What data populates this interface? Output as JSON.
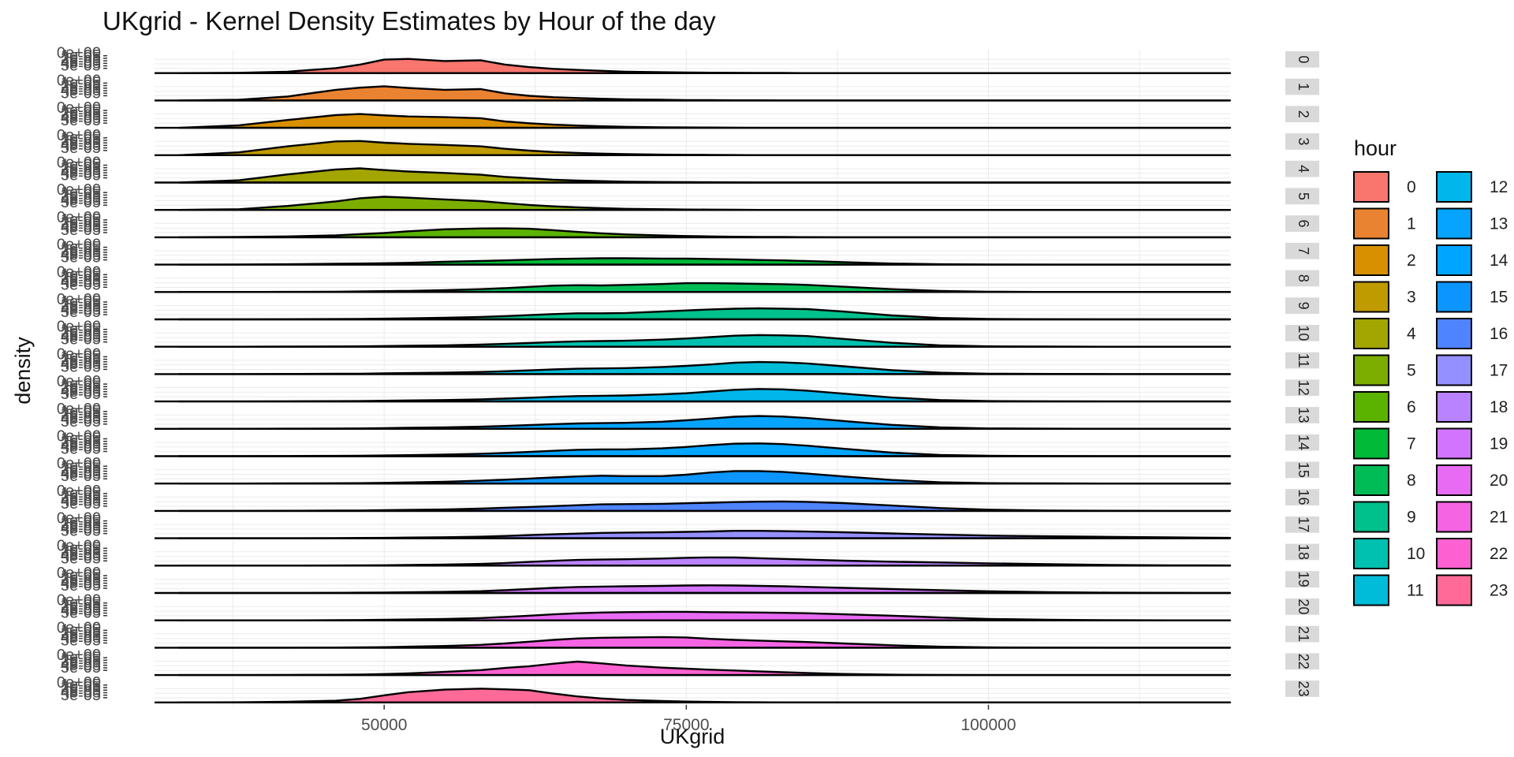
{
  "chart_data": {
    "type": "area",
    "title": "UKgrid - Kernel Density Estimates by Hour of the day",
    "xlabel": "UKgrid",
    "ylabel": "density",
    "xlim": [
      31000,
      120000
    ],
    "x_ticks": [
      50000,
      75000,
      100000
    ],
    "x_tick_labels": [
      "50000",
      "75000",
      "100000"
    ],
    "y_tick_labels": [
      "5e-05",
      "4e-05",
      "3e-05",
      "2e-05",
      "1e-05",
      "0e+00"
    ],
    "grid": true,
    "facet_strip_position": "right",
    "legend": {
      "title": "hour",
      "position": "right",
      "labels": [
        "0",
        "1",
        "2",
        "3",
        "4",
        "5",
        "6",
        "7",
        "8",
        "9",
        "10",
        "11",
        "12",
        "13",
        "14",
        "15",
        "16",
        "17",
        "18",
        "19",
        "20",
        "21",
        "22",
        "23"
      ]
    },
    "x": [
      33000,
      38000,
      42000,
      46000,
      48000,
      50000,
      52000,
      55000,
      58000,
      60000,
      62000,
      64000,
      66000,
      68000,
      70000,
      73000,
      75000,
      77000,
      79000,
      81000,
      83000,
      85000,
      88000,
      92000,
      96000,
      100000,
      105000,
      110000,
      115000,
      120000
    ],
    "series": [
      {
        "name": "0",
        "color": "#F8766D",
        "values": [
          0,
          0.02,
          0.1,
          0.35,
          0.6,
          0.95,
          1.0,
          0.85,
          0.9,
          0.6,
          0.42,
          0.3,
          0.22,
          0.16,
          0.1,
          0.06,
          0.04,
          0.03,
          0.02,
          0.01,
          0.01,
          0,
          0,
          0,
          0,
          0,
          0,
          0,
          0,
          0
        ]
      },
      {
        "name": "1",
        "color": "#EA8331",
        "values": [
          0,
          0.05,
          0.28,
          0.75,
          0.9,
          1.0,
          0.88,
          0.75,
          0.8,
          0.5,
          0.33,
          0.23,
          0.17,
          0.12,
          0.08,
          0.05,
          0.03,
          0.02,
          0.01,
          0.01,
          0,
          0,
          0,
          0,
          0,
          0,
          0,
          0,
          0,
          0
        ]
      },
      {
        "name": "2",
        "color": "#D89000",
        "values": [
          0,
          0.18,
          0.55,
          0.9,
          0.97,
          0.88,
          0.8,
          0.75,
          0.68,
          0.45,
          0.32,
          0.22,
          0.16,
          0.11,
          0.07,
          0.04,
          0.03,
          0.02,
          0.01,
          0,
          0,
          0,
          0,
          0,
          0,
          0,
          0,
          0,
          0,
          0
        ]
      },
      {
        "name": "3",
        "color": "#C09B00",
        "values": [
          0,
          0.2,
          0.62,
          0.97,
          1.0,
          0.88,
          0.8,
          0.72,
          0.62,
          0.45,
          0.32,
          0.22,
          0.16,
          0.11,
          0.07,
          0.04,
          0.03,
          0.02,
          0.01,
          0,
          0,
          0,
          0,
          0,
          0,
          0,
          0,
          0,
          0,
          0
        ]
      },
      {
        "name": "4",
        "color": "#A3A500",
        "values": [
          0,
          0.16,
          0.57,
          0.92,
          1.0,
          0.88,
          0.78,
          0.68,
          0.55,
          0.4,
          0.3,
          0.2,
          0.14,
          0.1,
          0.06,
          0.04,
          0.03,
          0.02,
          0.01,
          0,
          0,
          0,
          0,
          0,
          0,
          0,
          0,
          0,
          0,
          0
        ]
      },
      {
        "name": "5",
        "color": "#7CAE00",
        "values": [
          0,
          0.05,
          0.28,
          0.6,
          0.82,
          0.93,
          0.86,
          0.74,
          0.62,
          0.48,
          0.35,
          0.25,
          0.18,
          0.12,
          0.08,
          0.05,
          0.03,
          0.02,
          0.01,
          0,
          0,
          0,
          0,
          0,
          0,
          0,
          0,
          0,
          0,
          0
        ]
      },
      {
        "name": "6",
        "color": "#5BB300",
        "values": [
          0,
          0.02,
          0.06,
          0.14,
          0.22,
          0.3,
          0.42,
          0.56,
          0.62,
          0.63,
          0.6,
          0.5,
          0.38,
          0.28,
          0.2,
          0.13,
          0.09,
          0.06,
          0.04,
          0.03,
          0.02,
          0.01,
          0,
          0,
          0,
          0,
          0,
          0,
          0,
          0
        ]
      },
      {
        "name": "7",
        "color": "#00BA38",
        "values": [
          0,
          0.01,
          0.03,
          0.06,
          0.08,
          0.1,
          0.13,
          0.2,
          0.26,
          0.3,
          0.35,
          0.4,
          0.43,
          0.45,
          0.45,
          0.43,
          0.42,
          0.4,
          0.37,
          0.33,
          0.3,
          0.25,
          0.17,
          0.08,
          0.03,
          0.01,
          0,
          0,
          0,
          0
        ]
      },
      {
        "name": "8",
        "color": "#00BC56",
        "values": [
          0,
          0,
          0.01,
          0.02,
          0.04,
          0.06,
          0.08,
          0.13,
          0.2,
          0.27,
          0.36,
          0.45,
          0.48,
          0.46,
          0.5,
          0.56,
          0.62,
          0.62,
          0.6,
          0.57,
          0.55,
          0.5,
          0.37,
          0.2,
          0.08,
          0.02,
          0,
          0,
          0,
          0
        ]
      },
      {
        "name": "9",
        "color": "#00C08B",
        "values": [
          0,
          0,
          0.01,
          0.02,
          0.03,
          0.05,
          0.07,
          0.11,
          0.17,
          0.23,
          0.3,
          0.37,
          0.43,
          0.43,
          0.45,
          0.55,
          0.63,
          0.7,
          0.75,
          0.78,
          0.75,
          0.72,
          0.55,
          0.28,
          0.1,
          0.03,
          0.01,
          0,
          0,
          0
        ]
      },
      {
        "name": "10",
        "color": "#00C0AF",
        "values": [
          0,
          0,
          0.01,
          0.02,
          0.03,
          0.05,
          0.07,
          0.1,
          0.15,
          0.2,
          0.26,
          0.33,
          0.38,
          0.4,
          0.42,
          0.5,
          0.58,
          0.68,
          0.78,
          0.82,
          0.8,
          0.75,
          0.55,
          0.28,
          0.1,
          0.03,
          0.01,
          0,
          0,
          0
        ]
      },
      {
        "name": "11",
        "color": "#00BCD8",
        "values": [
          0,
          0,
          0.01,
          0.02,
          0.03,
          0.05,
          0.07,
          0.1,
          0.15,
          0.2,
          0.26,
          0.33,
          0.38,
          0.4,
          0.42,
          0.5,
          0.58,
          0.68,
          0.8,
          0.85,
          0.82,
          0.75,
          0.55,
          0.28,
          0.1,
          0.03,
          0.01,
          0,
          0,
          0
        ]
      },
      {
        "name": "12",
        "color": "#00B6EB",
        "values": [
          0,
          0,
          0.01,
          0.02,
          0.03,
          0.05,
          0.07,
          0.1,
          0.15,
          0.2,
          0.26,
          0.33,
          0.38,
          0.4,
          0.42,
          0.5,
          0.58,
          0.7,
          0.82,
          0.88,
          0.85,
          0.76,
          0.55,
          0.28,
          0.1,
          0.03,
          0.01,
          0,
          0,
          0
        ]
      },
      {
        "name": "13",
        "color": "#06A4FF",
        "values": [
          0,
          0,
          0.01,
          0.02,
          0.03,
          0.05,
          0.07,
          0.1,
          0.15,
          0.2,
          0.26,
          0.33,
          0.38,
          0.4,
          0.42,
          0.5,
          0.6,
          0.72,
          0.85,
          0.9,
          0.86,
          0.76,
          0.55,
          0.28,
          0.1,
          0.03,
          0.01,
          0,
          0,
          0
        ]
      },
      {
        "name": "14",
        "color": "#00A5FF",
        "values": [
          0,
          0,
          0.01,
          0.02,
          0.03,
          0.05,
          0.07,
          0.11,
          0.17,
          0.23,
          0.3,
          0.38,
          0.45,
          0.48,
          0.48,
          0.55,
          0.65,
          0.78,
          0.88,
          0.9,
          0.85,
          0.74,
          0.52,
          0.25,
          0.09,
          0.03,
          0.01,
          0,
          0,
          0
        ]
      },
      {
        "name": "15",
        "color": "#0D95FF",
        "values": [
          0,
          0,
          0.01,
          0.02,
          0.03,
          0.05,
          0.08,
          0.12,
          0.2,
          0.27,
          0.35,
          0.43,
          0.5,
          0.55,
          0.52,
          0.52,
          0.62,
          0.78,
          0.88,
          0.88,
          0.82,
          0.7,
          0.5,
          0.25,
          0.09,
          0.03,
          0.01,
          0,
          0,
          0
        ]
      },
      {
        "name": "16",
        "color": "#4E84FF",
        "values": [
          0,
          0,
          0.01,
          0.02,
          0.03,
          0.05,
          0.07,
          0.1,
          0.16,
          0.22,
          0.28,
          0.34,
          0.4,
          0.46,
          0.48,
          0.5,
          0.54,
          0.58,
          0.62,
          0.65,
          0.66,
          0.64,
          0.55,
          0.38,
          0.2,
          0.09,
          0.03,
          0.01,
          0,
          0
        ]
      },
      {
        "name": "17",
        "color": "#9590FF",
        "values": [
          0,
          0,
          0,
          0.01,
          0.02,
          0.03,
          0.05,
          0.07,
          0.11,
          0.16,
          0.22,
          0.28,
          0.33,
          0.38,
          0.4,
          0.42,
          0.45,
          0.48,
          0.52,
          0.52,
          0.5,
          0.47,
          0.42,
          0.34,
          0.26,
          0.19,
          0.14,
          0.1,
          0.06,
          0.03
        ]
      },
      {
        "name": "18",
        "color": "#B983FF",
        "values": [
          0,
          0,
          0,
          0.01,
          0.02,
          0.03,
          0.05,
          0.08,
          0.12,
          0.18,
          0.26,
          0.34,
          0.4,
          0.43,
          0.45,
          0.5,
          0.55,
          0.58,
          0.57,
          0.52,
          0.47,
          0.42,
          0.35,
          0.28,
          0.22,
          0.16,
          0.1,
          0.05,
          0.02,
          0.01
        ]
      },
      {
        "name": "19",
        "color": "#D374FF",
        "values": [
          0,
          0,
          0,
          0.01,
          0.02,
          0.03,
          0.05,
          0.08,
          0.13,
          0.2,
          0.28,
          0.36,
          0.42,
          0.45,
          0.47,
          0.5,
          0.53,
          0.54,
          0.53,
          0.5,
          0.47,
          0.43,
          0.36,
          0.28,
          0.2,
          0.12,
          0.06,
          0.02,
          0.01,
          0
        ]
      },
      {
        "name": "20",
        "color": "#E76BF3",
        "values": [
          0,
          0,
          0,
          0.01,
          0.02,
          0.04,
          0.06,
          0.1,
          0.16,
          0.24,
          0.33,
          0.42,
          0.5,
          0.55,
          0.58,
          0.6,
          0.6,
          0.58,
          0.56,
          0.55,
          0.53,
          0.5,
          0.43,
          0.33,
          0.2,
          0.1,
          0.04,
          0.01,
          0,
          0
        ]
      },
      {
        "name": "21",
        "color": "#F564E3",
        "values": [
          0,
          0,
          0,
          0.01,
          0.02,
          0.04,
          0.07,
          0.12,
          0.2,
          0.3,
          0.42,
          0.55,
          0.65,
          0.7,
          0.72,
          0.75,
          0.72,
          0.62,
          0.55,
          0.5,
          0.45,
          0.4,
          0.3,
          0.17,
          0.07,
          0.02,
          0.01,
          0,
          0,
          0
        ]
      },
      {
        "name": "22",
        "color": "#FD61D1",
        "values": [
          0,
          0,
          0.01,
          0.02,
          0.04,
          0.07,
          0.12,
          0.22,
          0.35,
          0.5,
          0.62,
          0.8,
          0.95,
          0.82,
          0.68,
          0.52,
          0.45,
          0.38,
          0.32,
          0.26,
          0.2,
          0.15,
          0.08,
          0.03,
          0.01,
          0,
          0,
          0,
          0,
          0
        ]
      },
      {
        "name": "23",
        "color": "#FF6A98",
        "values": [
          0,
          0.01,
          0.05,
          0.12,
          0.25,
          0.5,
          0.72,
          0.9,
          0.97,
          0.92,
          0.86,
          0.62,
          0.42,
          0.28,
          0.18,
          0.1,
          0.06,
          0.04,
          0.02,
          0.01,
          0,
          0,
          0,
          0,
          0,
          0,
          0,
          0,
          0,
          0
        ]
      }
    ]
  }
}
